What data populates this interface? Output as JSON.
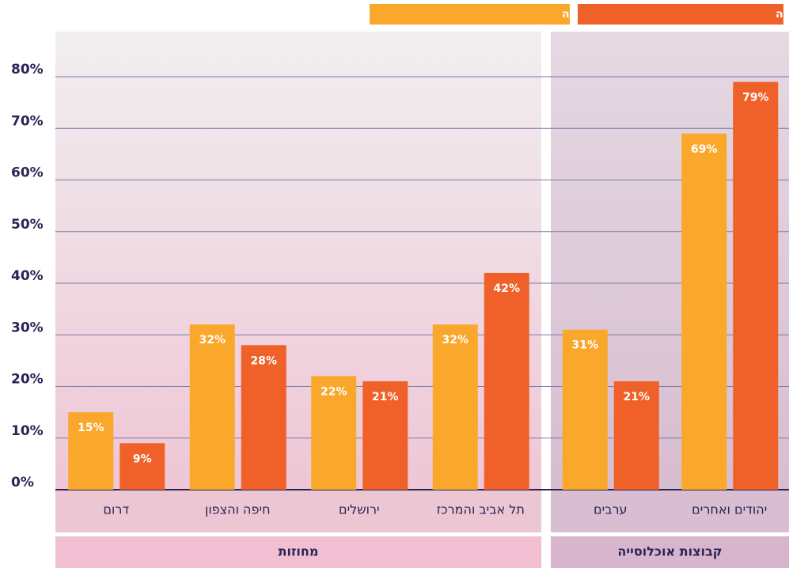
{
  "chart_data": {
    "type": "bar",
    "categories": [
      "דרום",
      "חיפה והצפון",
      "ירושלים",
      "תל אביב והמרכז",
      "ערבים",
      "יהודים ואחרים"
    ],
    "groups": [
      {
        "label": "מחוזות",
        "count": 4
      },
      {
        "label": "קבוצות אוכלוסייה",
        "count": 2
      }
    ],
    "series": [
      {
        "name": "חלקם במקבלי שירותי הרווחה",
        "color": "#f9a82b",
        "values": [
          15,
          32,
          22,
          32,
          31,
          69
        ],
        "value_labels": [
          "15%",
          "32%",
          "22%",
          "32%",
          "31%",
          "69%"
        ]
      },
      {
        "name": "חלקם באוכלוסייה",
        "color": "#f0612a",
        "values": [
          9,
          28,
          21,
          42,
          21,
          79
        ],
        "value_labels": [
          "9%",
          "28%",
          "21%",
          "42%",
          "21%",
          "79%"
        ]
      }
    ],
    "ylim": [
      0,
      80
    ],
    "yticks": [
      {
        "value": 0,
        "label": "0%"
      },
      {
        "value": 10,
        "label": "10%"
      },
      {
        "value": 20,
        "label": "20%"
      },
      {
        "value": 30,
        "label": "30%"
      },
      {
        "value": 40,
        "label": "40%"
      },
      {
        "value": 50,
        "label": "50%"
      },
      {
        "value": 60,
        "label": "60%"
      },
      {
        "value": 70,
        "label": "70%"
      },
      {
        "value": 80,
        "label": "80%"
      }
    ],
    "grid": true
  }
}
